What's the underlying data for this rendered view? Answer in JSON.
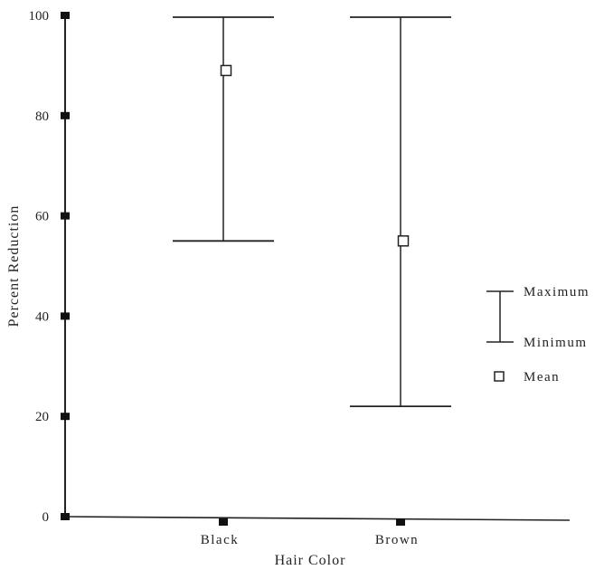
{
  "chart_data": {
    "type": "range",
    "title": "",
    "xlabel": "Hair Color",
    "ylabel": "Percent Reduction",
    "categories": [
      "Black",
      "Brown"
    ],
    "series": [
      {
        "name": "Maximum",
        "values": [
          100,
          100
        ]
      },
      {
        "name": "Minimum",
        "values": [
          55,
          22
        ]
      },
      {
        "name": "Mean",
        "values": [
          89,
          55
        ]
      }
    ],
    "ylim": [
      0,
      100
    ],
    "yticks": [
      0,
      20,
      40,
      60,
      80,
      100
    ],
    "legend": {
      "position": "right",
      "max_label": "Maximum",
      "min_label": "Minimum",
      "mean_label": "Mean"
    },
    "grid": false
  }
}
